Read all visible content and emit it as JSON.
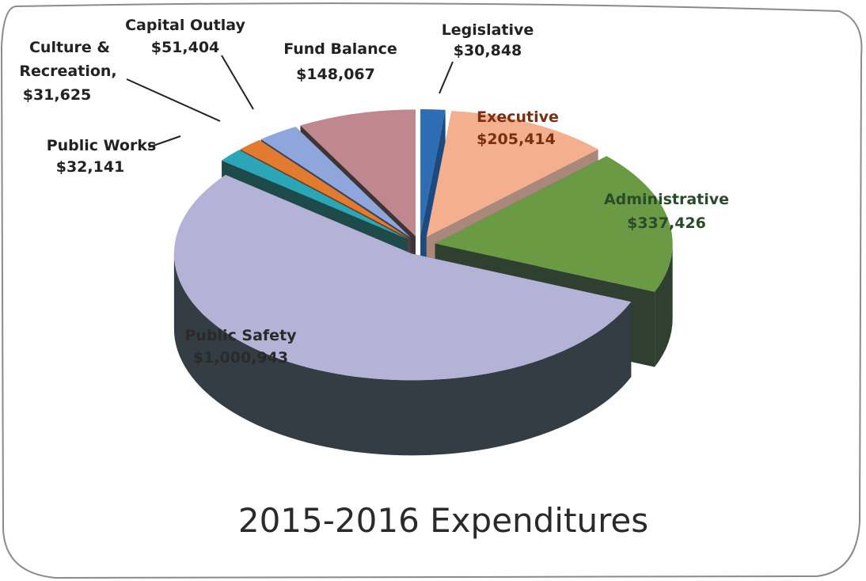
{
  "chart_data": {
    "type": "pie",
    "title": "2015-2016 Expenditures",
    "style": "3d-exploded",
    "slices": [
      {
        "category": "Legislative",
        "value_label": "$30,848",
        "value": 30848,
        "color": "#2e6db4",
        "side": "#1d4a7c"
      },
      {
        "category": "Executive",
        "value_label": "$205,414",
        "value": 205414,
        "color": "#f4b08e",
        "side": "#a9877b"
      },
      {
        "category": "Administrative",
        "value_label": "$337,426",
        "value": 337426,
        "color": "#6b9a45",
        "side": "#2f4030"
      },
      {
        "category": "Public Safety",
        "value_label": "$1,000,943",
        "value": 1000943,
        "color": "#b4b2d6",
        "side": "#343c44"
      },
      {
        "category": "Public Works",
        "value_label": "$32,141",
        "value": 32141,
        "color": "#2aa6b8",
        "side": "#1f4a4a"
      },
      {
        "category": "Culture & Recreation",
        "value_label": "$31,625",
        "value": 31625,
        "color": "#e27b2f",
        "side": "#6a3a1a"
      },
      {
        "category": "Capital Outlay",
        "value_label": "$51,404",
        "value": 51404,
        "color": "#8fa6dc",
        "side": "#3a4456"
      },
      {
        "category": "Fund Balance",
        "value_label": "$148,067",
        "value": 148067,
        "color": "#c0878f",
        "side": "#3e3436"
      }
    ]
  }
}
